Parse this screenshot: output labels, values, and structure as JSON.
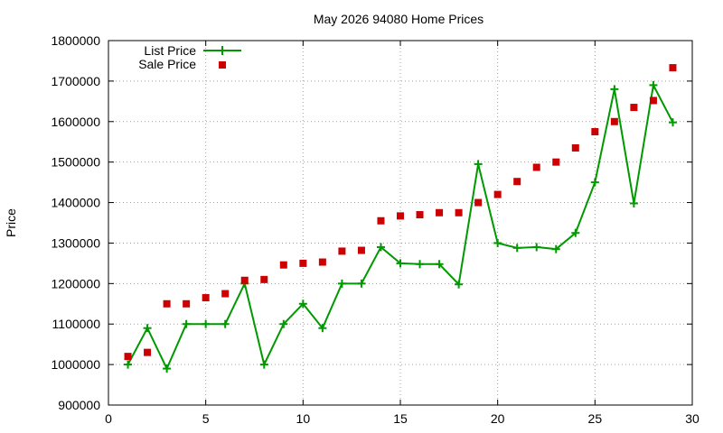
{
  "chart_data": {
    "type": "line",
    "title": "May 2026 94080 Home Prices",
    "xlabel": "",
    "ylabel": "Price",
    "xlim": [
      0,
      30
    ],
    "ylim": [
      900000,
      1800000
    ],
    "xticks": [
      0,
      5,
      10,
      15,
      20,
      25,
      30
    ],
    "yticks": [
      900000,
      1000000,
      1100000,
      1200000,
      1300000,
      1400000,
      1500000,
      1600000,
      1700000,
      1800000
    ],
    "grid": true,
    "legend_position": "top-left",
    "series": [
      {
        "name": "List Price",
        "style": "line-with-plus-markers",
        "color": "#009900",
        "x": [
          1,
          2,
          3,
          4,
          5,
          6,
          7,
          8,
          9,
          10,
          11,
          12,
          13,
          14,
          15,
          16,
          17,
          18,
          19,
          20,
          21,
          22,
          23,
          24,
          25,
          26,
          27,
          28,
          29
        ],
        "y": [
          1000000,
          1090000,
          990000,
          1100000,
          1100000,
          1100000,
          1200000,
          1000000,
          1100000,
          1150000,
          1090000,
          1200000,
          1200000,
          1290000,
          1250000,
          1248000,
          1248000,
          1198000,
          1495000,
          1300000,
          1288000,
          1290000,
          1285000,
          1325000,
          1450000,
          1680000,
          1398000,
          1690000,
          1598000
        ]
      },
      {
        "name": "Sale Price",
        "style": "square-markers",
        "color": "#cc0000",
        "x": [
          1,
          2,
          3,
          4,
          5,
          6,
          7,
          8,
          9,
          10,
          11,
          12,
          13,
          14,
          15,
          16,
          17,
          18,
          19,
          20,
          21,
          22,
          23,
          24,
          25,
          26,
          27,
          28,
          29
        ],
        "y": [
          1020000,
          1030000,
          1150000,
          1150000,
          1165000,
          1175000,
          1208000,
          1210000,
          1246000,
          1250000,
          1253000,
          1280000,
          1282000,
          1355000,
          1367000,
          1370000,
          1375000,
          1375000,
          1400000,
          1420000,
          1452000,
          1487000,
          1500000,
          1535000,
          1575000,
          1600000,
          1635000,
          1652000,
          1733000
        ]
      }
    ]
  }
}
